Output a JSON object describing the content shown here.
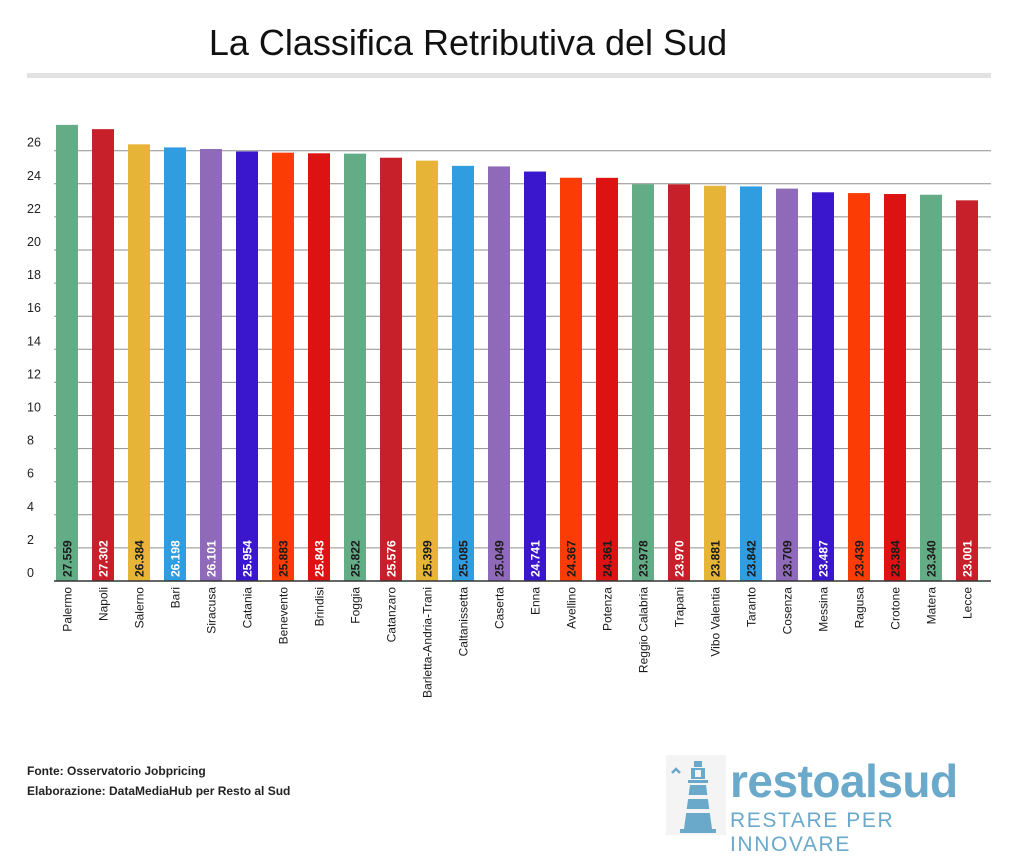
{
  "title": "La Classifica Retributiva del Sud",
  "footer": {
    "source": "Fonte:  Osservatorio Jobpricing",
    "credit": "Elaborazione: DataMediaHub per Resto al Sud"
  },
  "logo": {
    "name": "restoalsud",
    "tagline": "RESTARE PER INNOVARE",
    "icon": "lighthouse-icon",
    "color": "#6aa9c9"
  },
  "chart_data": {
    "type": "bar",
    "title": "La Classifica Retributiva del Sud",
    "xlabel": "",
    "ylabel": "",
    "ylim": [
      0,
      26
    ],
    "yticks": [
      0,
      2,
      4,
      6,
      8,
      10,
      12,
      14,
      16,
      18,
      20,
      22,
      24,
      26
    ],
    "grid": true,
    "categories": [
      "Palermo",
      "Napoli",
      "Salerno",
      "Bari",
      "Siracusa",
      "Catania",
      "Benevento",
      "Brindisi",
      "Foggia",
      "Catanzaro",
      "Barletta-Andria-Trani",
      "Caltanissetta",
      "Caserta",
      "Enna",
      "Avellino",
      "Potenza",
      "Reggio Calabria",
      "Trapani",
      "Vibo Valentia",
      "Taranto",
      "Cosenza",
      "Messina",
      "Ragusa",
      "Crotone",
      "Matera",
      "Lecce"
    ],
    "values": [
      27.559,
      27.302,
      26.384,
      26.198,
      26.101,
      25.954,
      25.883,
      25.843,
      25.822,
      25.576,
      25.399,
      25.085,
      25.049,
      24.741,
      24.367,
      24.361,
      23.978,
      23.97,
      23.881,
      23.842,
      23.709,
      23.487,
      23.439,
      23.384,
      23.34,
      23.001
    ],
    "value_labels": [
      "27.559",
      "27.302",
      "26.384",
      "26.198",
      "26.101",
      "25.954",
      "25.883",
      "25.843",
      "25.822",
      "25.576",
      "25.399",
      "25.085",
      "25.049",
      "24.741",
      "24.367",
      "24.361",
      "23.978",
      "23.970",
      "23.881",
      "23.842",
      "23.709",
      "23.487",
      "23.439",
      "23.384",
      "23.340",
      "23.001"
    ],
    "colors": [
      "#64ac86",
      "#c8202a",
      "#e6b537",
      "#2f9ddf",
      "#8e6ab8",
      "#3a16cc",
      "#fc3c05",
      "#dc1213",
      "#64ac86",
      "#c8202a",
      "#e6b537",
      "#2f9ddf",
      "#8e6ab8",
      "#3a16cc",
      "#fc3c05",
      "#dc1213",
      "#64ac86",
      "#c8202a",
      "#e6b537",
      "#2f9ddf",
      "#8e6ab8",
      "#3a16cc",
      "#fc3c05",
      "#dc1213",
      "#64ac86",
      "#c8202a"
    ],
    "label_colors": [
      "#1a1a1a",
      "#ffffff",
      "#1a1a1a",
      "#ffffff",
      "#ffffff",
      "#ffffff",
      "#1a1a1a",
      "#ffffff",
      "#1a1a1a",
      "#ffffff",
      "#1a1a1a",
      "#1a1a1a",
      "#1a1a1a",
      "#ffffff",
      "#1a1a1a",
      "#1a1a1a",
      "#1a1a1a",
      "#ffffff",
      "#1a1a1a",
      "#1a1a1a",
      "#1a1a1a",
      "#ffffff",
      "#1a1a1a",
      "#1a1a1a",
      "#1a1a1a",
      "#ffffff"
    ]
  }
}
